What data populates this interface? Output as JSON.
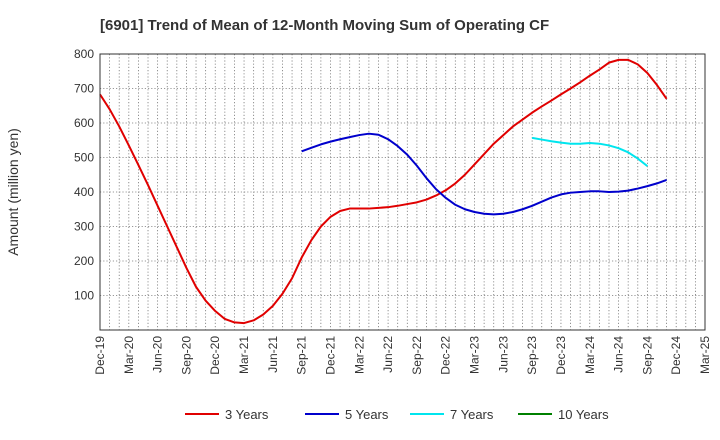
{
  "chart_data": {
    "type": "line",
    "title": "[6901]  Trend of Mean of 12-Month Moving Sum of Operating CF",
    "xlabel": "",
    "ylabel": "Amount (million yen)",
    "ylim": [
      0,
      800
    ],
    "yticks": [
      100,
      200,
      300,
      400,
      500,
      600,
      700,
      800
    ],
    "x_ticks": [
      "Dec-19",
      "Mar-20",
      "Jun-20",
      "Sep-20",
      "Dec-20",
      "Mar-21",
      "Jun-21",
      "Sep-21",
      "Dec-21",
      "Mar-22",
      "Jun-22",
      "Sep-22",
      "Dec-22",
      "Mar-23",
      "Jun-23",
      "Sep-23",
      "Dec-23",
      "Mar-24",
      "Jun-24",
      "Sep-24",
      "Dec-24",
      "Mar-25"
    ],
    "grid": true,
    "legend_position": "bottom",
    "colors": {
      "3 Years": "#e00000",
      "5 Years": "#0000cc",
      "7 Years": "#00e5ee",
      "10 Years": "#008000"
    },
    "series": [
      {
        "name": "3 Years",
        "start_index": 0,
        "values": [
          683,
          640,
          590,
          535,
          478,
          420,
          360,
          300,
          240,
          180,
          125,
          85,
          55,
          32,
          22,
          20,
          28,
          45,
          70,
          105,
          150,
          210,
          260,
          300,
          328,
          345,
          352,
          352,
          352,
          354,
          356,
          360,
          365,
          370,
          378,
          390,
          405,
          425,
          450,
          480,
          510,
          540,
          565,
          590,
          610,
          630,
          648,
          665,
          683,
          700,
          718,
          737,
          755,
          775,
          783,
          783,
          770,
          745,
          710,
          670
        ]
      },
      {
        "name": "5 Years",
        "start_index": 21,
        "values": [
          518,
          528,
          538,
          546,
          553,
          559,
          565,
          569,
          566,
          553,
          533,
          508,
          476,
          440,
          408,
          383,
          363,
          350,
          342,
          337,
          335,
          337,
          342,
          350,
          360,
          372,
          384,
          393,
          398,
          400,
          402,
          402,
          400,
          401,
          404,
          410,
          417,
          425,
          435
        ]
      },
      {
        "name": "7 Years",
        "start_index": 45,
        "values": [
          557,
          552,
          547,
          543,
          540,
          540,
          542,
          540,
          535,
          527,
          515,
          497,
          475
        ]
      },
      {
        "name": "10 Years",
        "start_index": 0,
        "values": []
      }
    ]
  }
}
